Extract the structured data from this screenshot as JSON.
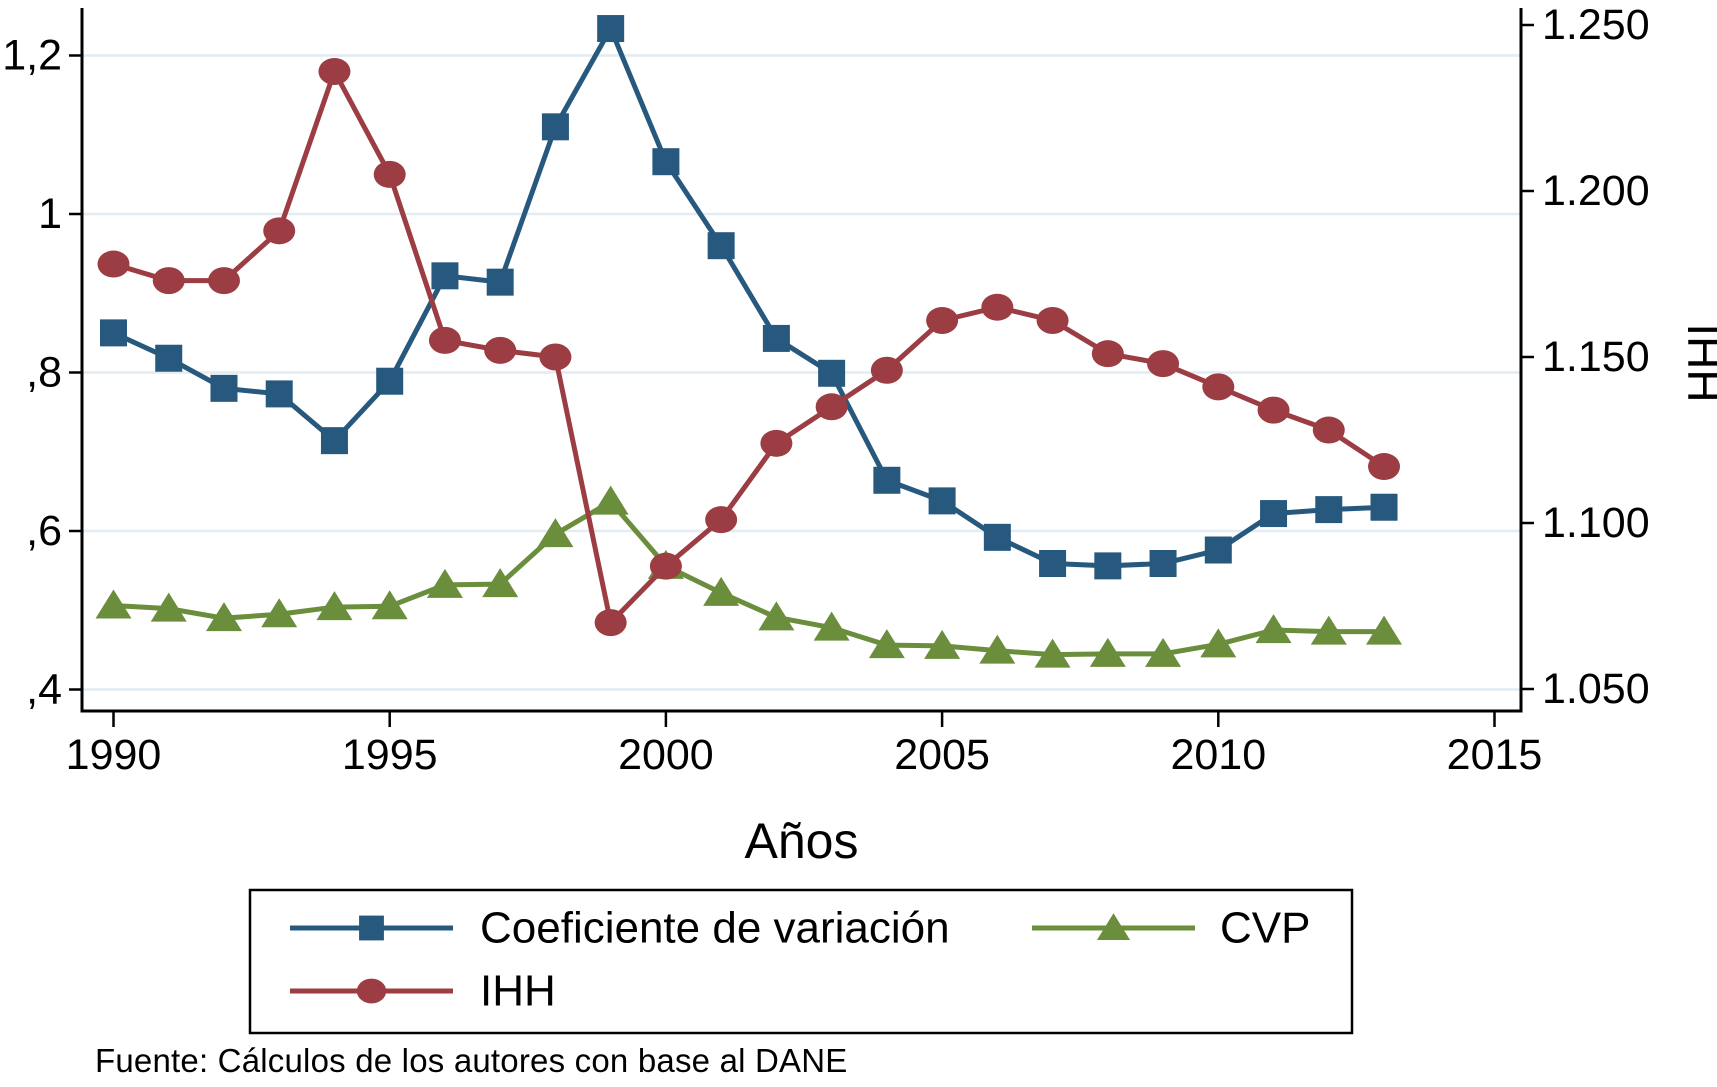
{
  "chart_data": {
    "type": "line",
    "xlabel": "Años",
    "ylabel_right": "IHH",
    "x": [
      1990,
      1991,
      1992,
      1993,
      1994,
      1995,
      1996,
      1997,
      1998,
      1999,
      2000,
      2001,
      2002,
      2003,
      2004,
      2005,
      2006,
      2007,
      2008,
      2009,
      2010,
      2011,
      2012,
      2013
    ],
    "series": [
      {
        "name": "Coeficiente de variación",
        "axis": "left",
        "marker": "square",
        "color": "#27597e",
        "values": [
          0.85,
          0.818,
          0.78,
          0.773,
          0.714,
          0.789,
          0.922,
          0.914,
          1.11,
          1.234,
          1.066,
          0.96,
          0.843,
          0.799,
          0.664,
          0.638,
          0.592,
          0.559,
          0.556,
          0.559,
          0.576,
          0.622,
          0.627,
          0.63
        ]
      },
      {
        "name": "CVP",
        "axis": "left",
        "marker": "triangle",
        "color": "#6b8e3c",
        "values": [
          0.506,
          0.502,
          0.49,
          0.495,
          0.504,
          0.505,
          0.532,
          0.533,
          0.596,
          0.637,
          0.556,
          0.522,
          0.491,
          0.478,
          0.456,
          0.455,
          0.449,
          0.444,
          0.445,
          0.445,
          0.457,
          0.475,
          0.473,
          0.473
        ]
      },
      {
        "name": "IHH",
        "axis": "right",
        "marker": "circle",
        "color": "#9b3d42",
        "values": [
          1.178,
          1.173,
          1.173,
          1.188,
          1.236,
          1.205,
          1.155,
          1.152,
          1.15,
          1.07,
          1.087,
          1.101,
          1.124,
          1.135,
          1.146,
          1.161,
          1.165,
          1.161,
          1.151,
          1.148,
          1.141,
          1.134,
          1.128,
          1.117
        ]
      }
    ],
    "left_axis": {
      "ticks": [
        {
          "v": 1.2,
          "label": "1,2"
        },
        {
          "v": 1.0,
          "label": "1"
        },
        {
          "v": 0.8,
          "label": ",8"
        },
        {
          "v": 0.6,
          "label": ",6"
        },
        {
          "v": 0.4,
          "label": ",4"
        }
      ],
      "range": [
        0.372,
        1.261
      ],
      "grid": true
    },
    "right_axis": {
      "ticks": [
        {
          "v": 1.25,
          "label": "1.250"
        },
        {
          "v": 1.2,
          "label": "1.200"
        },
        {
          "v": 1.15,
          "label": "1.150"
        },
        {
          "v": 1.1,
          "label": "1.100"
        },
        {
          "v": 1.05,
          "label": "1.050"
        }
      ],
      "range": [
        1.0415,
        1.2552
      ],
      "grid": false
    },
    "x_ticks": [
      {
        "v": 1990,
        "label": "1990"
      },
      {
        "v": 1995,
        "label": "1995"
      },
      {
        "v": 2000,
        "label": "2000"
      },
      {
        "v": 2005,
        "label": "2005"
      },
      {
        "v": 2010,
        "label": "2010"
      },
      {
        "v": 2015,
        "label": "2015"
      }
    ],
    "legend": {
      "position": "bottom",
      "rows": [
        [
          "Coeficiente de variación",
          "CVP"
        ],
        [
          "IHH"
        ]
      ]
    },
    "colors": {
      "grid": "#e2ecf2",
      "axis": "#000000",
      "navy": "#27597e",
      "olive": "#6b8e3c",
      "maroon": "#9b3d42"
    }
  },
  "source_note": "Fuente: Cálculos de los autores con base al DANE"
}
